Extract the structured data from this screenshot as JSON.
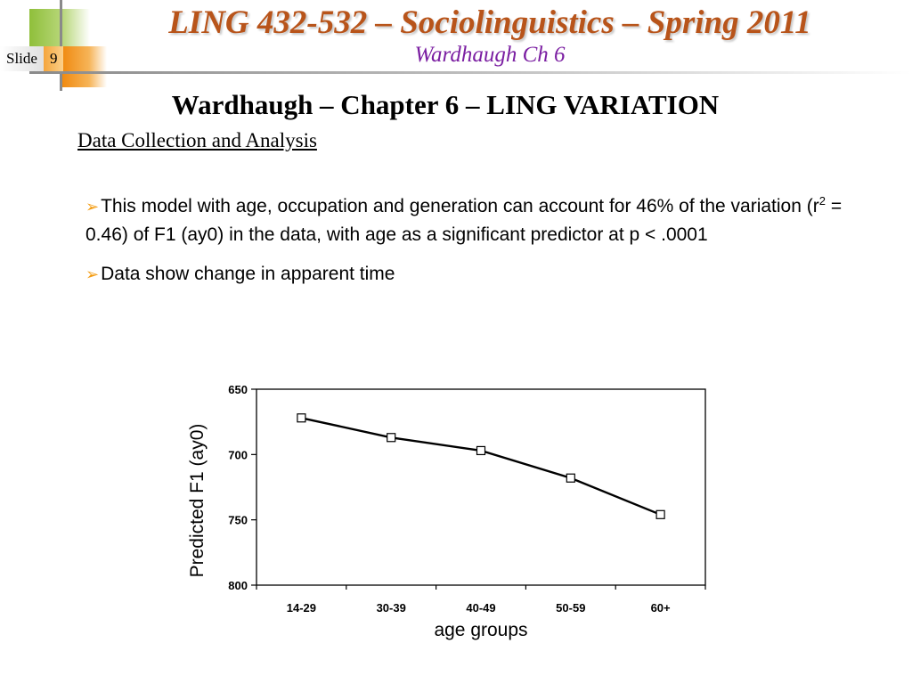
{
  "header": {
    "slide_label": "Slide",
    "slide_number": "9",
    "course_title": "LING 432-532 – Sociolinguistics – Spring 2011",
    "course_subtitle": "Wardhaugh Ch 6"
  },
  "slide": {
    "heading": "Wardhaugh – Chapter 6 – LING VARIATION",
    "subheading": "Data Collection and Analysis",
    "bullets": {
      "b1_part1": "This model with age, occupation and generation can account for 46% of the variation (r",
      "b1_sup": "2",
      "b1_part2": " = 0.46) of F1 (ay0) in the data, with age as a significant predictor at p < .0001",
      "b2": "Data show change in apparent time"
    }
  },
  "colors": {
    "title": "#b8541a",
    "subtitle": "#7b1fa2",
    "bullet_arrow": "#f39c12"
  },
  "chart_data": {
    "type": "line",
    "categories": [
      "14-29",
      "30-39",
      "40-49",
      "50-59",
      "60+"
    ],
    "series": [
      {
        "values": [
          672,
          687,
          697,
          718,
          746
        ]
      }
    ],
    "xlabel": "age groups",
    "ylabel": "Predicted F1 (ay0)",
    "ylim": [
      650,
      800
    ],
    "y_inverted": true,
    "yticks": [
      650,
      700,
      750,
      800
    ],
    "marker": "square",
    "grid": false
  }
}
